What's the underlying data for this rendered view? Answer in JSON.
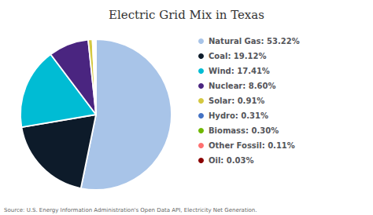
{
  "chart_data": {
    "type": "pie",
    "title": "Electric Grid Mix in Texas",
    "annotations": [
      "Source: U.S. Energy Information Administration's Open Data API, Electricity Net Generation."
    ],
    "categories": [
      "Natural Gas: 53.22%",
      "Coal: 19.12%",
      "Wind: 17.41%",
      "Nuclear: 8.60%",
      "Solar: 0.91%",
      "Hydro: 0.31%",
      "Biomass: 0.30%",
      "Other Fossil: 0.11%",
      "Oil: 0.03%"
    ],
    "values": [
      53.22,
      19.12,
      17.41,
      8.6,
      0.91,
      0.31,
      0.3,
      0.11,
      0.03
    ],
    "colors": [
      "#a8c4e8",
      "#0d1b2a",
      "#00bcd4",
      "#4a2580",
      "#d4c840",
      "#4472c4",
      "#70b800",
      "#ff7070",
      "#8b0000"
    ],
    "legend": "right"
  }
}
